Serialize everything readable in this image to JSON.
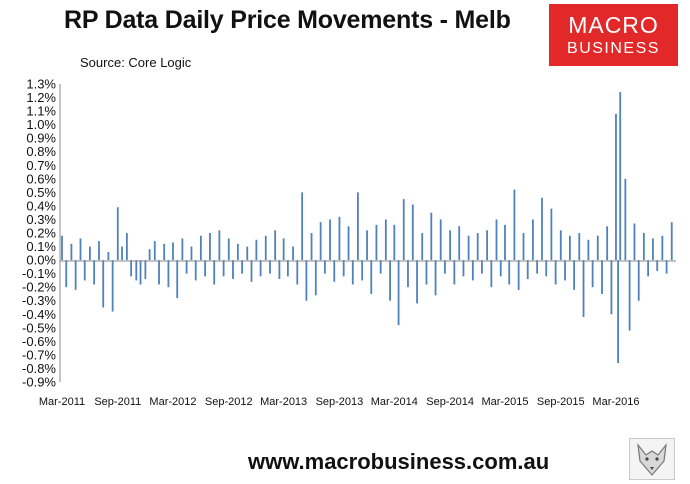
{
  "header": {
    "title": "RP Data Daily Price Movements - Melb",
    "source": "Source: Core Logic"
  },
  "logo": {
    "line1": "MACRO",
    "line2": "BUSINESS"
  },
  "footer": {
    "website": "www.macrobusiness.com.au"
  },
  "colors": {
    "bars": "#4f81bd",
    "logo_bg": "#e3282a",
    "axis": "#888888"
  },
  "icons": {
    "badge": "fox-icon"
  },
  "chart_data": {
    "type": "bar",
    "title": "RP Data Daily Price Movements - Melb",
    "subtitle": "Source: Core Logic",
    "ylim": [
      -0.9,
      1.3
    ],
    "y_ticks": [
      "1.3%",
      "1.2%",
      "1.1%",
      "1.0%",
      "0.9%",
      "0.8%",
      "0.7%",
      "0.6%",
      "0.5%",
      "0.4%",
      "0.3%",
      "0.2%",
      "0.1%",
      "0.0%",
      "-0.1%",
      "-0.2%",
      "-0.3%",
      "-0.4%",
      "-0.5%",
      "-0.6%",
      "-0.7%",
      "-0.8%",
      "-0.9%"
    ],
    "x_ticks": [
      "Mar-2011",
      "Sep-2011",
      "Mar-2012",
      "Sep-2012",
      "Mar-2013",
      "Sep-2013",
      "Mar-2014",
      "Sep-2014",
      "Mar-2015",
      "Sep-2015",
      "Mar-2016"
    ],
    "x_range": [
      "2011-03-01",
      "2016-09-15"
    ],
    "grid": false,
    "legend": "none",
    "series": [
      {
        "values": [
          {
            "x": "2011-03-01",
            "y": 0.18
          },
          {
            "x": "2011-03-15",
            "y": -0.2
          },
          {
            "x": "2011-04-01",
            "y": 0.12
          },
          {
            "x": "2011-04-15",
            "y": -0.22
          },
          {
            "x": "2011-05-01",
            "y": 0.16
          },
          {
            "x": "2011-05-15",
            "y": -0.15
          },
          {
            "x": "2011-06-01",
            "y": 0.1
          },
          {
            "x": "2011-06-15",
            "y": -0.18
          },
          {
            "x": "2011-07-01",
            "y": 0.14
          },
          {
            "x": "2011-07-15",
            "y": -0.35
          },
          {
            "x": "2011-08-01",
            "y": 0.06
          },
          {
            "x": "2011-08-15",
            "y": -0.38
          },
          {
            "x": "2011-09-01",
            "y": 0.39
          },
          {
            "x": "2011-09-15",
            "y": 0.1
          },
          {
            "x": "2011-10-01",
            "y": 0.2
          },
          {
            "x": "2011-10-15",
            "y": -0.12
          },
          {
            "x": "2011-11-01",
            "y": -0.15
          },
          {
            "x": "2011-11-15",
            "y": -0.18
          },
          {
            "x": "2011-12-01",
            "y": -0.14
          },
          {
            "x": "2011-12-15",
            "y": 0.08
          },
          {
            "x": "2012-01-01",
            "y": 0.14
          },
          {
            "x": "2012-01-15",
            "y": -0.18
          },
          {
            "x": "2012-02-01",
            "y": 0.12
          },
          {
            "x": "2012-02-15",
            "y": -0.2
          },
          {
            "x": "2012-03-01",
            "y": 0.13
          },
          {
            "x": "2012-03-15",
            "y": -0.28
          },
          {
            "x": "2012-04-01",
            "y": 0.16
          },
          {
            "x": "2012-04-15",
            "y": -0.1
          },
          {
            "x": "2012-05-01",
            "y": 0.1
          },
          {
            "x": "2012-05-15",
            "y": -0.15
          },
          {
            "x": "2012-06-01",
            "y": 0.18
          },
          {
            "x": "2012-06-15",
            "y": -0.12
          },
          {
            "x": "2012-07-01",
            "y": 0.2
          },
          {
            "x": "2012-07-15",
            "y": -0.18
          },
          {
            "x": "2012-08-01",
            "y": 0.22
          },
          {
            "x": "2012-08-15",
            "y": -0.12
          },
          {
            "x": "2012-09-01",
            "y": 0.16
          },
          {
            "x": "2012-09-15",
            "y": -0.14
          },
          {
            "x": "2012-10-01",
            "y": 0.12
          },
          {
            "x": "2012-10-15",
            "y": -0.1
          },
          {
            "x": "2012-11-01",
            "y": 0.1
          },
          {
            "x": "2012-11-15",
            "y": -0.16
          },
          {
            "x": "2012-12-01",
            "y": 0.15
          },
          {
            "x": "2012-12-15",
            "y": -0.12
          },
          {
            "x": "2013-01-01",
            "y": 0.18
          },
          {
            "x": "2013-01-15",
            "y": -0.1
          },
          {
            "x": "2013-02-01",
            "y": 0.22
          },
          {
            "x": "2013-02-15",
            "y": -0.14
          },
          {
            "x": "2013-03-01",
            "y": 0.16
          },
          {
            "x": "2013-03-15",
            "y": -0.12
          },
          {
            "x": "2013-04-01",
            "y": 0.1
          },
          {
            "x": "2013-04-15",
            "y": -0.18
          },
          {
            "x": "2013-05-01",
            "y": 0.5
          },
          {
            "x": "2013-05-15",
            "y": -0.3
          },
          {
            "x": "2013-06-01",
            "y": 0.2
          },
          {
            "x": "2013-06-15",
            "y": -0.26
          },
          {
            "x": "2013-07-01",
            "y": 0.28
          },
          {
            "x": "2013-07-15",
            "y": -0.1
          },
          {
            "x": "2013-08-01",
            "y": 0.3
          },
          {
            "x": "2013-08-15",
            "y": -0.16
          },
          {
            "x": "2013-09-01",
            "y": 0.32
          },
          {
            "x": "2013-09-15",
            "y": -0.12
          },
          {
            "x": "2013-10-01",
            "y": 0.25
          },
          {
            "x": "2013-10-15",
            "y": -0.18
          },
          {
            "x": "2013-11-01",
            "y": 0.5
          },
          {
            "x": "2013-11-15",
            "y": -0.15
          },
          {
            "x": "2013-12-01",
            "y": 0.22
          },
          {
            "x": "2013-12-15",
            "y": -0.25
          },
          {
            "x": "2014-01-01",
            "y": 0.26
          },
          {
            "x": "2014-01-15",
            "y": -0.1
          },
          {
            "x": "2014-02-01",
            "y": 0.3
          },
          {
            "x": "2014-02-15",
            "y": -0.3
          },
          {
            "x": "2014-03-01",
            "y": 0.26
          },
          {
            "x": "2014-03-15",
            "y": -0.48
          },
          {
            "x": "2014-04-01",
            "y": 0.45
          },
          {
            "x": "2014-04-15",
            "y": -0.2
          },
          {
            "x": "2014-05-01",
            "y": 0.41
          },
          {
            "x": "2014-05-15",
            "y": -0.32
          },
          {
            "x": "2014-06-01",
            "y": 0.2
          },
          {
            "x": "2014-06-15",
            "y": -0.18
          },
          {
            "x": "2014-07-01",
            "y": 0.35
          },
          {
            "x": "2014-07-15",
            "y": -0.26
          },
          {
            "x": "2014-08-01",
            "y": 0.3
          },
          {
            "x": "2014-08-15",
            "y": -0.1
          },
          {
            "x": "2014-09-01",
            "y": 0.22
          },
          {
            "x": "2014-09-15",
            "y": -0.18
          },
          {
            "x": "2014-10-01",
            "y": 0.25
          },
          {
            "x": "2014-10-15",
            "y": -0.12
          },
          {
            "x": "2014-11-01",
            "y": 0.18
          },
          {
            "x": "2014-11-15",
            "y": -0.15
          },
          {
            "x": "2014-12-01",
            "y": 0.2
          },
          {
            "x": "2014-12-15",
            "y": -0.1
          },
          {
            "x": "2015-01-01",
            "y": 0.22
          },
          {
            "x": "2015-01-15",
            "y": -0.2
          },
          {
            "x": "2015-02-01",
            "y": 0.3
          },
          {
            "x": "2015-02-15",
            "y": -0.12
          },
          {
            "x": "2015-03-01",
            "y": 0.26
          },
          {
            "x": "2015-03-15",
            "y": -0.18
          },
          {
            "x": "2015-04-01",
            "y": 0.52
          },
          {
            "x": "2015-04-15",
            "y": -0.22
          },
          {
            "x": "2015-05-01",
            "y": 0.2
          },
          {
            "x": "2015-05-15",
            "y": -0.14
          },
          {
            "x": "2015-06-01",
            "y": 0.3
          },
          {
            "x": "2015-06-15",
            "y": -0.1
          },
          {
            "x": "2015-07-01",
            "y": 0.46
          },
          {
            "x": "2015-07-15",
            "y": -0.12
          },
          {
            "x": "2015-08-01",
            "y": 0.38
          },
          {
            "x": "2015-08-15",
            "y": -0.18
          },
          {
            "x": "2015-09-01",
            "y": 0.22
          },
          {
            "x": "2015-09-15",
            "y": -0.15
          },
          {
            "x": "2015-10-01",
            "y": 0.18
          },
          {
            "x": "2015-10-15",
            "y": -0.22
          },
          {
            "x": "2015-11-01",
            "y": 0.2
          },
          {
            "x": "2015-11-15",
            "y": -0.42
          },
          {
            "x": "2015-12-01",
            "y": 0.15
          },
          {
            "x": "2015-12-15",
            "y": -0.2
          },
          {
            "x": "2016-01-01",
            "y": 0.18
          },
          {
            "x": "2016-01-15",
            "y": -0.25
          },
          {
            "x": "2016-02-01",
            "y": 0.25
          },
          {
            "x": "2016-02-15",
            "y": -0.4
          },
          {
            "x": "2016-03-01",
            "y": 1.08
          },
          {
            "x": "2016-03-08",
            "y": -0.76
          },
          {
            "x": "2016-03-15",
            "y": 1.24
          },
          {
            "x": "2016-04-01",
            "y": 0.6
          },
          {
            "x": "2016-04-15",
            "y": -0.52
          },
          {
            "x": "2016-05-01",
            "y": 0.27
          },
          {
            "x": "2016-05-15",
            "y": -0.3
          },
          {
            "x": "2016-06-01",
            "y": 0.2
          },
          {
            "x": "2016-06-15",
            "y": -0.12
          },
          {
            "x": "2016-07-01",
            "y": 0.16
          },
          {
            "x": "2016-07-15",
            "y": -0.08
          },
          {
            "x": "2016-08-01",
            "y": 0.18
          },
          {
            "x": "2016-08-15",
            "y": -0.1
          },
          {
            "x": "2016-09-01",
            "y": 0.28
          }
        ]
      }
    ]
  }
}
